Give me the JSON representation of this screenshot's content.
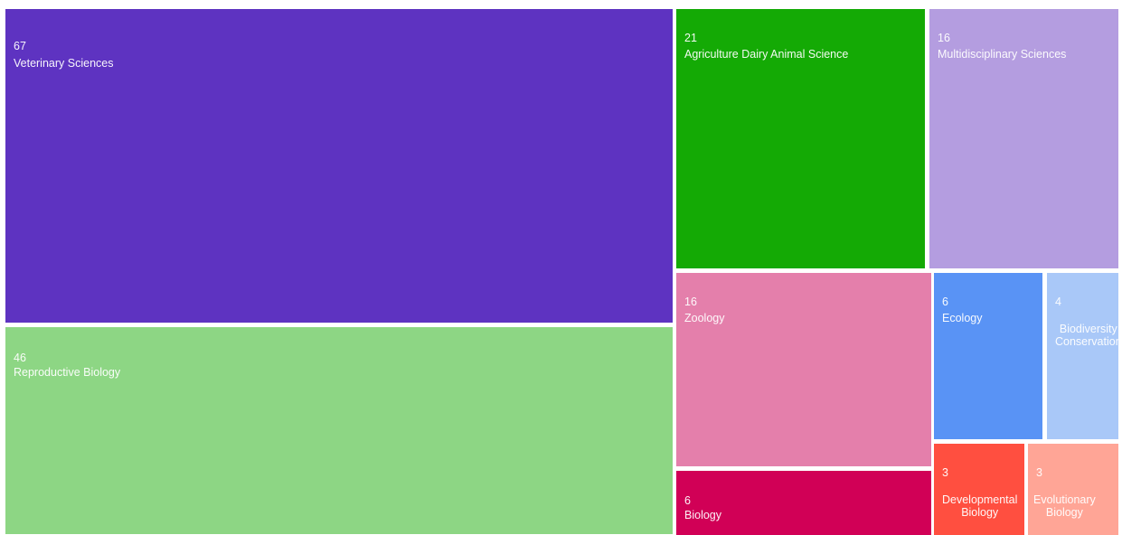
{
  "chart_data": {
    "type": "treemap",
    "title": "",
    "items": [
      {
        "label": "Veterinary Sciences",
        "value": 67,
        "color": "#5e33c1"
      },
      {
        "label": "Reproductive Biology",
        "value": 46,
        "color": "#8dd684"
      },
      {
        "label": "Agriculture Dairy Animal Science",
        "value": 21,
        "color": "#14aa05"
      },
      {
        "label": "Multidisciplinary Sciences",
        "value": 16,
        "color": "#b49de0"
      },
      {
        "label": "Zoology",
        "value": 16,
        "color": "#e47fab"
      },
      {
        "label": "Biology",
        "value": 6,
        "color": "#d10056"
      },
      {
        "label": "Ecology",
        "value": 6,
        "color": "#5993f5"
      },
      {
        "label": "Biodiversity Conservation",
        "value": 4,
        "color": "#a9c8f8"
      },
      {
        "label": "Developmental Biology",
        "value": 3,
        "color": "#ff4f40"
      },
      {
        "label": "Evolutionary Biology",
        "value": 3,
        "color": "#ffa596"
      }
    ]
  }
}
